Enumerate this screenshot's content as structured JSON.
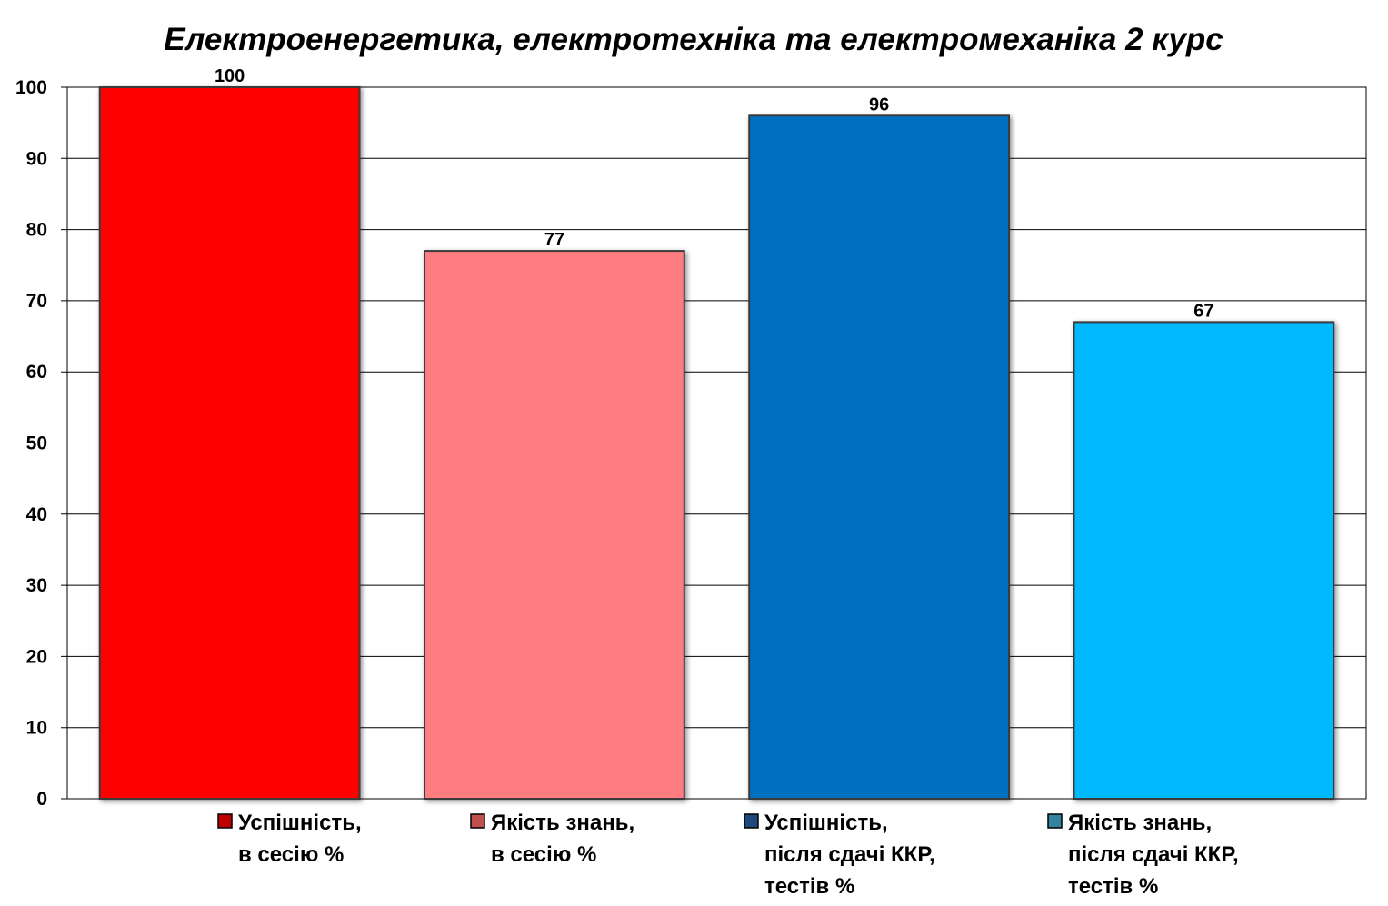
{
  "chart_data": {
    "type": "bar",
    "title": "Електроенергетика, електротехніка та електромеханіка 2 курс",
    "xlabel": "",
    "ylabel": "",
    "ylim": [
      0,
      100
    ],
    "yticks": [
      0,
      10,
      20,
      30,
      40,
      50,
      60,
      70,
      80,
      90,
      100
    ],
    "grid": true,
    "legend_position": "bottom",
    "series": [
      {
        "name": "Успішність, в сесію %",
        "legend_lines": [
          "Успішність,",
          "в сесію %"
        ],
        "values": [
          100
        ],
        "color": "#ff0000",
        "marker_color": "#c00000"
      },
      {
        "name": "Якість знань, в сесію %",
        "legend_lines": [
          "Якість знань,",
          "в сесію %"
        ],
        "values": [
          77
        ],
        "color": "#ff7c80",
        "marker_color": "#c0504d"
      },
      {
        "name": "Успішність, після сдачі ККР, тестів %",
        "legend_lines": [
          "Успішність,",
          "після сдачі ККР,",
          "тестів %"
        ],
        "values": [
          96
        ],
        "color": "#0070c0",
        "marker_color": "#1f497d"
      },
      {
        "name": "Якість знань, після сдачі ККР, тестів %",
        "legend_lines": [
          "Якість знань,",
          "після сдачі ККР,",
          "тестів %"
        ],
        "values": [
          67
        ],
        "color": "#00b9ff",
        "marker_color": "#31849b"
      }
    ],
    "data_labels": [
      "100",
      "77",
      "96",
      "67"
    ]
  }
}
